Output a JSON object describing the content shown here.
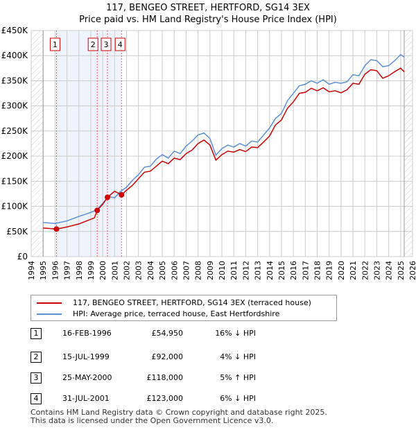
{
  "title": "117, BENGEO STREET, HERTFORD, SG14 3EX",
  "subtitle": "Price paid vs. HM Land Registry's House Price Index (HPI)",
  "chart_data": {
    "type": "line",
    "title": "117, BENGEO STREET, HERTFORD, SG14 3EX",
    "xlim": [
      1994,
      2026
    ],
    "ylim": [
      0,
      450000
    ],
    "x_ticks": [
      "1994",
      "1995",
      "1996",
      "1997",
      "1998",
      "1999",
      "2000",
      "2001",
      "2002",
      "2003",
      "2004",
      "2005",
      "2006",
      "2007",
      "2008",
      "2009",
      "2010",
      "2011",
      "2012",
      "2013",
      "2014",
      "2015",
      "2016",
      "2017",
      "2018",
      "2019",
      "2020",
      "2021",
      "2022",
      "2023",
      "2024",
      "2025",
      "2026"
    ],
    "y_ticks": [
      {
        "v": 0,
        "l": "£0"
      },
      {
        "v": 50000,
        "l": "£50K"
      },
      {
        "v": 100000,
        "l": "£100K"
      },
      {
        "v": 150000,
        "l": "£150K"
      },
      {
        "v": 200000,
        "l": "£200K"
      },
      {
        "v": 250000,
        "l": "£250K"
      },
      {
        "v": 300000,
        "l": "£300K"
      },
      {
        "v": 350000,
        "l": "£350K"
      },
      {
        "v": 400000,
        "l": "£400K"
      },
      {
        "v": 450000,
        "l": "£450K"
      }
    ],
    "grid": true,
    "series": [
      {
        "name": "117, BENGEO STREET, HERTFORD, SG14 3EX (terraced house)",
        "color": "#cc0000",
        "x": [
          1995,
          1996.12,
          1997,
          1998,
          1999.3,
          1999.54,
          2000,
          2000.4,
          2001,
          2001.58,
          2002,
          2002.5,
          2003,
          2003.5,
          2004,
          2004.5,
          2005,
          2005.5,
          2006,
          2006.5,
          2007,
          2007.5,
          2008,
          2008.5,
          2009,
          2009.5,
          2010,
          2010.5,
          2011,
          2011.5,
          2012,
          2012.5,
          2013,
          2013.5,
          2014,
          2014.5,
          2015,
          2015.5,
          2016,
          2016.5,
          2017,
          2017.5,
          2018,
          2018.5,
          2019,
          2019.5,
          2020,
          2020.5,
          2021,
          2021.5,
          2022,
          2022.5,
          2023,
          2023.5,
          2024,
          2024.5,
          2025,
          2025.3
        ],
        "y": [
          57000,
          54950,
          59000,
          65000,
          77000,
          92000,
          104000,
          118000,
          130000,
          123000,
          132000,
          142000,
          155000,
          168000,
          170000,
          180000,
          190000,
          185000,
          196000,
          193000,
          205000,
          212000,
          225000,
          232000,
          222000,
          192000,
          203000,
          210000,
          208000,
          213000,
          209000,
          218000,
          217000,
          228000,
          240000,
          262000,
          272000,
          295000,
          308000,
          325000,
          327000,
          335000,
          330000,
          336000,
          328000,
          330000,
          326000,
          332000,
          345000,
          343000,
          363000,
          372000,
          370000,
          355000,
          360000,
          368000,
          375000,
          368000
        ]
      },
      {
        "name": "HPI: Average price, terraced house, East Hertfordshire",
        "color": "#5b8fd6",
        "x": [
          1995,
          1996,
          1997,
          1998,
          1999,
          1999.5,
          2000,
          2000.5,
          2001,
          2001.5,
          2002,
          2002.5,
          2003,
          2003.5,
          2004,
          2004.5,
          2005,
          2005.5,
          2006,
          2006.5,
          2007,
          2007.5,
          2008,
          2008.5,
          2009,
          2009.5,
          2010,
          2010.5,
          2011,
          2011.5,
          2012,
          2012.5,
          2013,
          2013.5,
          2014,
          2014.5,
          2015,
          2015.5,
          2016,
          2016.5,
          2017,
          2017.5,
          2018,
          2018.5,
          2019,
          2019.5,
          2020,
          2020.5,
          2021,
          2021.5,
          2022,
          2022.5,
          2023,
          2023.5,
          2024,
          2024.5,
          2025,
          2025.3
        ],
        "y": [
          68000,
          66000,
          71000,
          80000,
          88000,
          93000,
          106000,
          120000,
          117000,
          130000,
          138000,
          152000,
          163000,
          178000,
          180000,
          194000,
          203000,
          196000,
          210000,
          205000,
          220000,
          230000,
          242000,
          246000,
          235000,
          202000,
          215000,
          222000,
          218000,
          225000,
          220000,
          230000,
          228000,
          242000,
          256000,
          275000,
          285000,
          310000,
          325000,
          340000,
          343000,
          350000,
          345000,
          352000,
          343000,
          347000,
          345000,
          348000,
          362000,
          360000,
          380000,
          392000,
          390000,
          378000,
          380000,
          390000,
          402000,
          397000
        ]
      }
    ],
    "transactions": [
      {
        "n": "1",
        "x": 1996.12,
        "price": 54950
      },
      {
        "n": "2",
        "x": 1999.54,
        "price": 92000
      },
      {
        "n": "3",
        "x": 2000.4,
        "price": 118000
      },
      {
        "n": "4",
        "x": 2001.58,
        "price": 123000
      }
    ]
  },
  "legend": {
    "price_paid": "117, BENGEO STREET, HERTFORD, SG14 3EX (terraced house)",
    "hpi": "HPI: Average price, terraced house, East Hertfordshire"
  },
  "table": [
    {
      "n": "1",
      "date": "16-FEB-1996",
      "price": "£54,950",
      "pct": "16% ↓ HPI"
    },
    {
      "n": "2",
      "date": "15-JUL-1999",
      "price": "£92,000",
      "pct": "4% ↓ HPI"
    },
    {
      "n": "3",
      "date": "25-MAY-2000",
      "price": "£118,000",
      "pct": "5% ↑ HPI"
    },
    {
      "n": "4",
      "date": "31-JUL-2001",
      "price": "£123,000",
      "pct": "6% ↓ HPI"
    }
  ],
  "footer": {
    "line1": "Contains HM Land Registry data © Crown copyright and database right 2025.",
    "line2": "This data is licensed under the Open Government Licence v3.0."
  }
}
